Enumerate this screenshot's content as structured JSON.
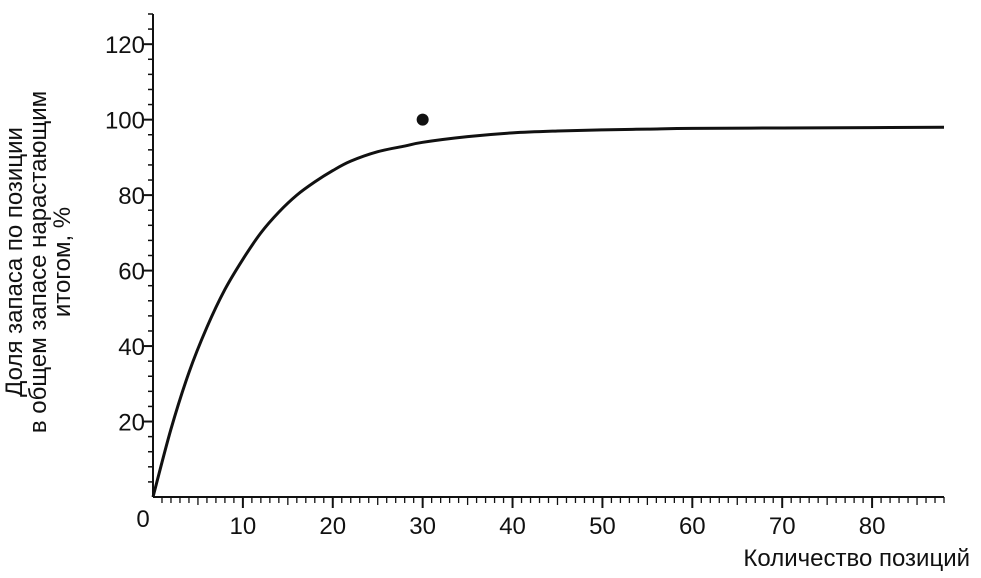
{
  "chart_data": {
    "type": "line",
    "title": "",
    "xlabel": "Количество позиций",
    "ylabel_lines": [
      "Доля запаса по позиции",
      "в общем запасе нарастающим",
      "итогом, %"
    ],
    "xlim": [
      0,
      88
    ],
    "ylim": [
      0,
      128
    ],
    "x_ticks": [
      0,
      10,
      20,
      30,
      40,
      50,
      60,
      70,
      80
    ],
    "y_ticks": [
      20,
      40,
      60,
      80,
      100,
      120
    ],
    "grid": false,
    "legend": "none",
    "line_color": "#111111",
    "series": [
      {
        "x": [
          0,
          2,
          4,
          6,
          8,
          10,
          12,
          14,
          16,
          18,
          20,
          22,
          25,
          28,
          30,
          35,
          40,
          45,
          50,
          55,
          60,
          70,
          80,
          88
        ],
        "values": [
          0,
          18,
          33,
          45,
          55,
          63,
          70,
          75.5,
          80,
          83.5,
          86.5,
          89,
          91.5,
          93,
          94,
          95.5,
          96.5,
          97,
          97.3,
          97.5,
          97.7,
          97.8,
          97.9,
          98
        ]
      }
    ],
    "points": [
      {
        "x": 30,
        "y": 100
      }
    ]
  }
}
